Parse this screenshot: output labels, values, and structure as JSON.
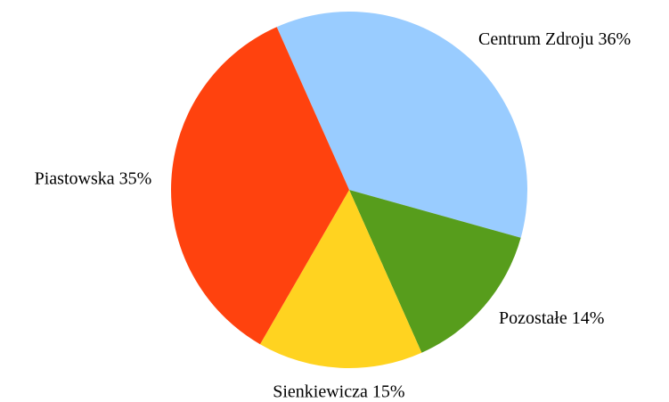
{
  "chart_data": {
    "type": "pie",
    "categories": [
      "Centrum Zdroju",
      "Pozostałe",
      "Sienkiewicza",
      "Piastowska"
    ],
    "values": [
      36,
      14,
      15,
      35
    ],
    "value_labels": [
      "36%",
      "14%",
      "15%",
      "35%"
    ],
    "colors": [
      "#99ccff",
      "#579d1c",
      "#ffd320",
      "#ff420e"
    ]
  }
}
